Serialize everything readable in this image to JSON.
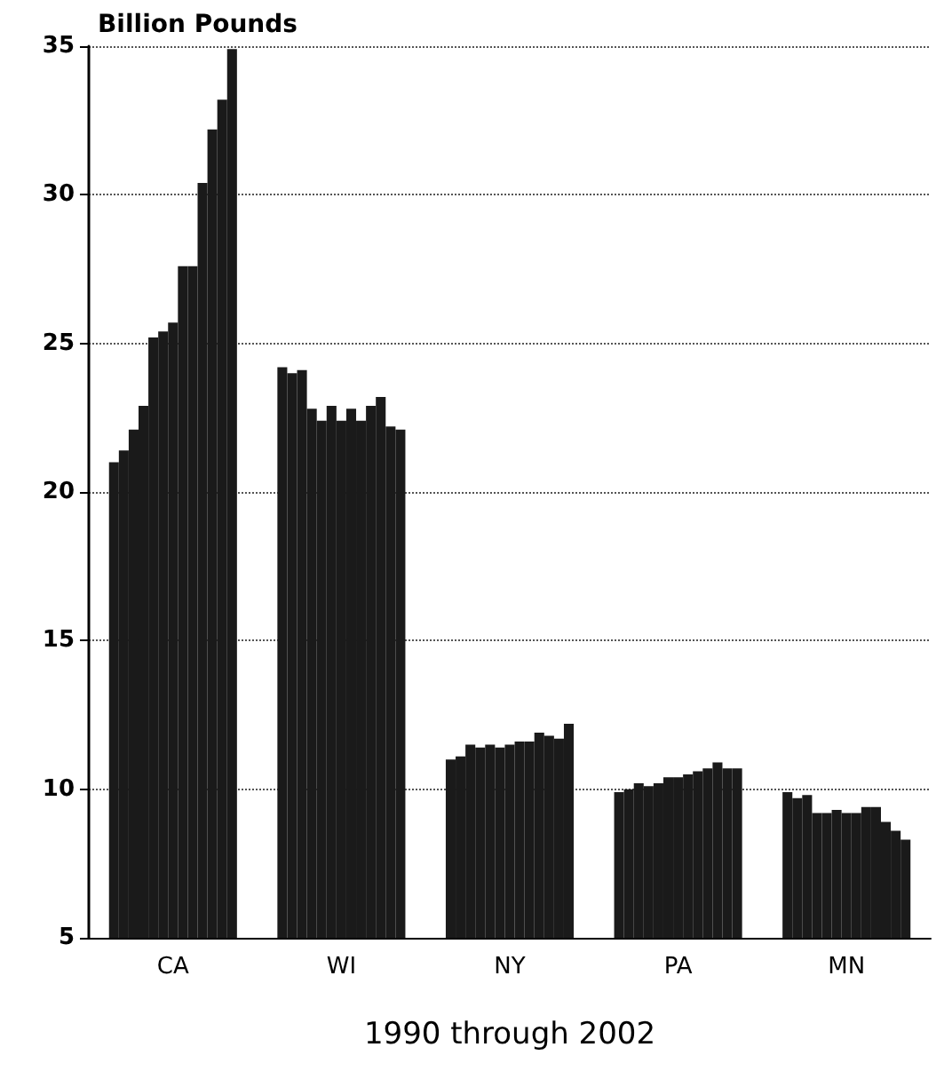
{
  "chart_data": {
    "type": "bar",
    "ylabel": "Billion Pounds",
    "xlabel": "1990 through 2002",
    "categories": [
      "CA",
      "WI",
      "NY",
      "PA",
      "MN"
    ],
    "series": [
      {
        "color": "#1a1a1a",
        "values": [
          21.0,
          24.2,
          11.0,
          9.9,
          9.9
        ]
      },
      {
        "color": "#1a1a1a",
        "values": [
          21.4,
          24.0,
          11.1,
          10.0,
          9.7
        ]
      },
      {
        "color": "#1a1a1a",
        "values": [
          22.1,
          24.1,
          11.5,
          10.2,
          9.8
        ]
      },
      {
        "color": "#1a1a1a",
        "values": [
          22.9,
          22.8,
          11.4,
          10.1,
          9.2
        ]
      },
      {
        "color": "#1a1a1a",
        "values": [
          25.2,
          22.4,
          11.5,
          10.2,
          9.2
        ]
      },
      {
        "color": "#1a1a1a",
        "values": [
          25.4,
          22.9,
          11.4,
          10.4,
          9.3
        ]
      },
      {
        "color": "#1a1a1a",
        "values": [
          25.7,
          22.4,
          11.5,
          10.4,
          9.2
        ]
      },
      {
        "color": "#1a1a1a",
        "values": [
          27.6,
          22.8,
          11.6,
          10.5,
          9.2
        ]
      },
      {
        "color": "#1a1a1a",
        "values": [
          27.6,
          22.4,
          11.6,
          10.6,
          9.4
        ]
      },
      {
        "color": "#1a1a1a",
        "values": [
          30.4,
          22.9,
          11.9,
          10.7,
          9.4
        ]
      },
      {
        "color": "#1a1a1a",
        "values": [
          32.2,
          23.2,
          11.8,
          10.9,
          8.9
        ]
      },
      {
        "color": "#1a1a1a",
        "values": [
          33.2,
          22.2,
          11.7,
          10.7,
          8.6
        ]
      },
      {
        "color": "#1a1a1a",
        "values": [
          34.9,
          22.1,
          12.2,
          10.7,
          8.3
        ]
      }
    ],
    "ylim": [
      5,
      35
    ],
    "yticks": [
      5,
      10,
      15,
      20,
      25,
      30,
      35
    ],
    "grid": "y"
  }
}
